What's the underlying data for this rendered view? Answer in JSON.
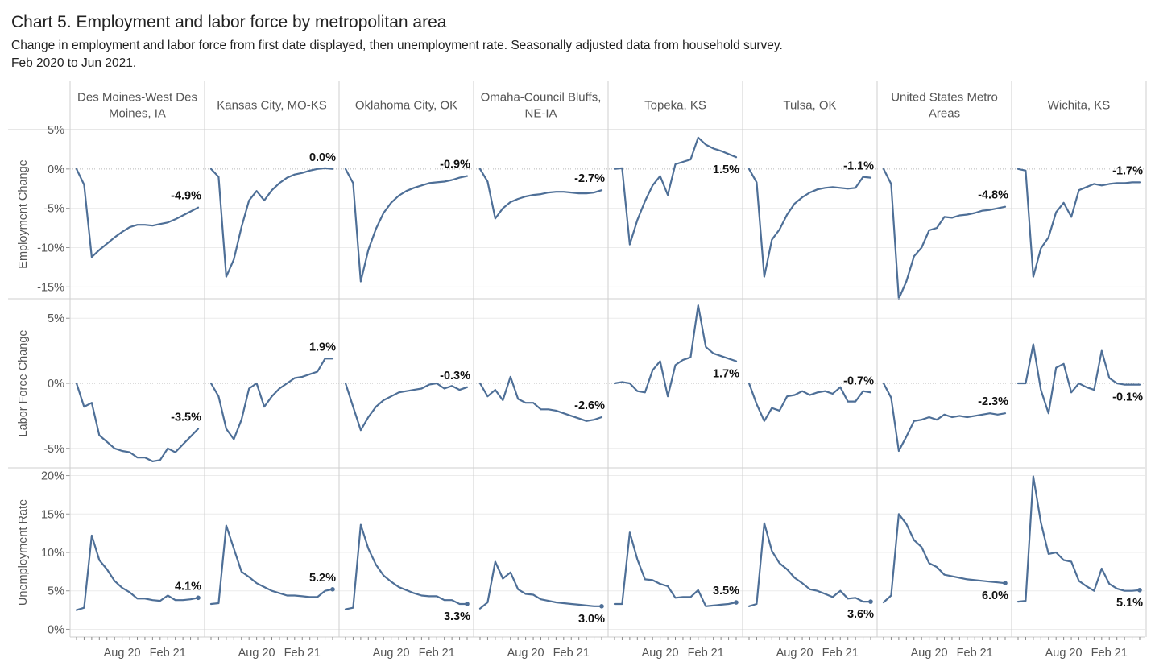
{
  "title": "Chart 5. Employment and labor force by metropolitan area",
  "subtitle": "Change in employment and labor force from first date displayed, then unemployment rate. Seasonally adjusted data from household survey.",
  "date_range": "Feb 2020 to Jun 2021.",
  "colors": {
    "line": "#4e6f97",
    "grid": "#ececec",
    "zero": "#b8b8b8",
    "divider": "#cfcfcf",
    "text": "#555555"
  },
  "chart_data": {
    "type": "line",
    "x": [
      "Feb 2020",
      "Mar 2020",
      "Apr 2020",
      "May 2020",
      "Jun 2020",
      "Jul 2020",
      "Aug 2020",
      "Sep 2020",
      "Oct 2020",
      "Nov 2020",
      "Dec 2020",
      "Jan 2021",
      "Feb 2021",
      "Mar 2021",
      "Apr 2021",
      "May 2021",
      "Jun 2021"
    ],
    "x_tick_labels": [
      "Aug 20",
      "Feb 21"
    ],
    "areas": [
      "Des Moines-West Des Moines, IA",
      "Kansas City, MO-KS",
      "Oklahoma City, OK",
      "Omaha-Council Bluffs, NE-IA",
      "Topeka, KS",
      "Tulsa, OK",
      "United States Metro Areas",
      "Wichita, KS"
    ],
    "rows": [
      {
        "ylabel": "Employment Change",
        "unit": "%",
        "ylim": [
          -16.5,
          5
        ],
        "yticks": [
          5,
          0,
          -5,
          -10,
          -15
        ],
        "ytick_labels": [
          "5%",
          "0%",
          "-5%",
          "-10%",
          "-15%"
        ],
        "series": [
          {
            "area": "Des Moines-West Des Moines, IA",
            "values": [
              0,
              -2,
              -11.2,
              -10.3,
              -9.5,
              -8.7,
              -8,
              -7.4,
              -7.1,
              -7.1,
              -7.2,
              -7,
              -6.8,
              -6.4,
              -5.9,
              -5.4,
              -4.9
            ],
            "end_label": "-4.9%"
          },
          {
            "area": "Kansas City, MO-KS",
            "values": [
              0,
              -1,
              -13.7,
              -11.5,
              -7.4,
              -4,
              -2.8,
              -4,
              -2.7,
              -1.8,
              -1.1,
              -0.7,
              -0.5,
              -0.2,
              0,
              0.1,
              0
            ],
            "end_label": "0.0%"
          },
          {
            "area": "Oklahoma City, OK",
            "values": [
              0,
              -1.8,
              -14.3,
              -10.3,
              -7.6,
              -5.6,
              -4.3,
              -3.4,
              -2.8,
              -2.4,
              -2.1,
              -1.8,
              -1.7,
              -1.6,
              -1.4,
              -1.1,
              -0.9
            ],
            "end_label": "-0.9%"
          },
          {
            "area": "Omaha-Council Bluffs, NE-IA",
            "values": [
              0,
              -1.6,
              -6.3,
              -5,
              -4.2,
              -3.8,
              -3.5,
              -3.3,
              -3.2,
              -3,
              -2.9,
              -2.9,
              -3,
              -3.1,
              -3.1,
              -3,
              -2.7
            ],
            "end_label": "-2.7%"
          },
          {
            "area": "Topeka, KS",
            "values": [
              0,
              0.1,
              -9.6,
              -6.5,
              -4.1,
              -2.1,
              -0.9,
              -3.3,
              0.6,
              0.9,
              1.2,
              4,
              3.1,
              2.6,
              2.3,
              1.9,
              1.5
            ],
            "end_label": "1.5%"
          },
          {
            "area": "Tulsa, OK",
            "values": [
              0,
              -1.7,
              -13.7,
              -9,
              -7.7,
              -5.8,
              -4.4,
              -3.6,
              -3,
              -2.6,
              -2.4,
              -2.3,
              -2.4,
              -2.5,
              -2.4,
              -1,
              -1.1
            ],
            "end_label": "-1.1%"
          },
          {
            "area": "United States Metro Areas",
            "values": [
              0,
              -1.9,
              -16.5,
              -14.3,
              -11.1,
              -10,
              -7.8,
              -7.5,
              -6.1,
              -6.2,
              -5.9,
              -5.8,
              -5.6,
              -5.3,
              -5.2,
              -5,
              -4.8
            ],
            "end_label": "-4.8%"
          },
          {
            "area": "Wichita, KS",
            "values": [
              0,
              -0.2,
              -13.7,
              -10.1,
              -8.7,
              -5.5,
              -4.3,
              -6.1,
              -2.7,
              -2.3,
              -1.9,
              -2.1,
              -1.9,
              -1.8,
              -1.8,
              -1.7,
              -1.7
            ],
            "end_label": "-1.7%"
          }
        ]
      },
      {
        "ylabel": "Labor Force Change",
        "unit": "%",
        "ylim": [
          -6.5,
          6.5
        ],
        "yticks": [
          5,
          0,
          -5
        ],
        "ytick_labels": [
          "5%",
          "0%",
          "-5%"
        ],
        "series": [
          {
            "area": "Des Moines-West Des Moines, IA",
            "values": [
              0,
              -1.8,
              -1.5,
              -4,
              -4.5,
              -5,
              -5.2,
              -5.3,
              -5.7,
              -5.7,
              -6,
              -5.9,
              -5,
              -5.3,
              -4.7,
              -4.1,
              -3.5
            ],
            "end_label": "-3.5%"
          },
          {
            "area": "Kansas City, MO-KS",
            "values": [
              0,
              -1,
              -3.5,
              -4.3,
              -2.8,
              -0.4,
              0,
              -1.8,
              -1,
              -0.4,
              0,
              0.4,
              0.5,
              0.7,
              0.9,
              1.9,
              1.9
            ],
            "end_label": "1.9%"
          },
          {
            "area": "Oklahoma City, OK",
            "values": [
              0,
              -1.8,
              -3.6,
              -2.6,
              -1.8,
              -1.3,
              -1,
              -0.7,
              -0.6,
              -0.5,
              -0.4,
              -0.1,
              0,
              -0.4,
              -0.2,
              -0.5,
              -0.3
            ],
            "end_label": "-0.3%"
          },
          {
            "area": "Omaha-Council Bluffs, NE-IA",
            "values": [
              0,
              -1,
              -0.5,
              -1.3,
              0.5,
              -1.2,
              -1.5,
              -1.5,
              -2,
              -2,
              -2.1,
              -2.3,
              -2.5,
              -2.7,
              -2.9,
              -2.8,
              -2.6
            ],
            "end_label": "-2.6%"
          },
          {
            "area": "Topeka, KS",
            "values": [
              0,
              0.1,
              0,
              -0.6,
              -0.7,
              1,
              1.7,
              -1,
              1.4,
              1.8,
              2,
              6,
              2.8,
              2.3,
              2.1,
              1.9,
              1.7
            ],
            "end_label": "1.7%"
          },
          {
            "area": "Tulsa, OK",
            "values": [
              0,
              -1.6,
              -2.9,
              -1.9,
              -2.1,
              -1,
              -0.9,
              -0.6,
              -0.9,
              -0.7,
              -0.6,
              -0.8,
              -0.3,
              -1.4,
              -1.4,
              -0.6,
              -0.7
            ],
            "end_label": "-0.7%"
          },
          {
            "area": "United States Metro Areas",
            "values": [
              0,
              -1.1,
              -5.2,
              -4.1,
              -2.9,
              -2.8,
              -2.6,
              -2.8,
              -2.4,
              -2.6,
              -2.5,
              -2.6,
              -2.5,
              -2.4,
              -2.3,
              -2.4,
              -2.3
            ],
            "end_label": "-2.3%"
          },
          {
            "area": "Wichita, KS",
            "values": [
              0,
              0,
              3,
              -0.5,
              -2.3,
              1.2,
              1.5,
              -0.7,
              0,
              -0.3,
              -0.5,
              2.5,
              0.4,
              0,
              -0.1,
              -0.1,
              -0.1
            ],
            "end_label": "-0.1%"
          }
        ]
      },
      {
        "ylabel": "Unemployment Rate",
        "unit": "%",
        "ylim": [
          -1,
          21
        ],
        "yticks": [
          20,
          15,
          10,
          5,
          0
        ],
        "ytick_labels": [
          "20%",
          "15%",
          "10%",
          "5%",
          "0%"
        ],
        "series": [
          {
            "area": "Des Moines-West Des Moines, IA",
            "values": [
              2.5,
              2.8,
              12.2,
              9,
              7.8,
              6.3,
              5.4,
              4.8,
              4,
              4,
              3.8,
              3.7,
              4.4,
              3.8,
              3.8,
              3.9,
              4.1
            ],
            "end_label": "4.1%"
          },
          {
            "area": "Kansas City, MO-KS",
            "values": [
              3.3,
              3.4,
              13.5,
              10.5,
              7.5,
              6.8,
              6,
              5.5,
              5,
              4.7,
              4.4,
              4.4,
              4.3,
              4.2,
              4.2,
              5,
              5.2
            ],
            "end_label": "5.2%"
          },
          {
            "area": "Oklahoma City, OK",
            "values": [
              2.6,
              2.8,
              13.6,
              10.5,
              8.4,
              7,
              6.2,
              5.5,
              5.1,
              4.7,
              4.4,
              4.3,
              4.3,
              3.8,
              3.8,
              3.3,
              3.3
            ],
            "end_label": "3.3%"
          },
          {
            "area": "Omaha-Council Bluffs, NE-IA",
            "values": [
              2.7,
              3.5,
              8.8,
              6.6,
              7.4,
              5.2,
              4.6,
              4.5,
              3.9,
              3.7,
              3.5,
              3.4,
              3.3,
              3.2,
              3.1,
              3,
              3
            ],
            "end_label": "3.0%"
          },
          {
            "area": "Topeka, KS",
            "values": [
              3.3,
              3.3,
              12.6,
              9.1,
              6.5,
              6.4,
              5.9,
              5.6,
              4.1,
              4.2,
              4.2,
              5.1,
              3,
              3.1,
              3.2,
              3.3,
              3.5
            ],
            "end_label": "3.5%"
          },
          {
            "area": "Tulsa, OK",
            "values": [
              3,
              3.3,
              13.8,
              10.2,
              8.6,
              7.8,
              6.7,
              6,
              5.2,
              5,
              4.6,
              4.2,
              5,
              4,
              4.1,
              3.6,
              3.6
            ],
            "end_label": "3.6%"
          },
          {
            "area": "United States Metro Areas",
            "values": [
              3.5,
              4.4,
              15,
              13.7,
              11.6,
              10.7,
              8.6,
              8.1,
              7.1,
              6.9,
              6.7,
              6.5,
              6.4,
              6.3,
              6.2,
              6.1,
              6
            ],
            "end_label": "6.0%"
          },
          {
            "area": "Wichita, KS",
            "values": [
              3.6,
              3.7,
              19.9,
              13.9,
              9.8,
              10,
              9,
              8.8,
              6.3,
              5.6,
              5,
              7.9,
              5.9,
              5.3,
              5,
              5,
              5.1
            ],
            "end_label": "5.1%"
          }
        ]
      }
    ],
    "grid": true
  }
}
